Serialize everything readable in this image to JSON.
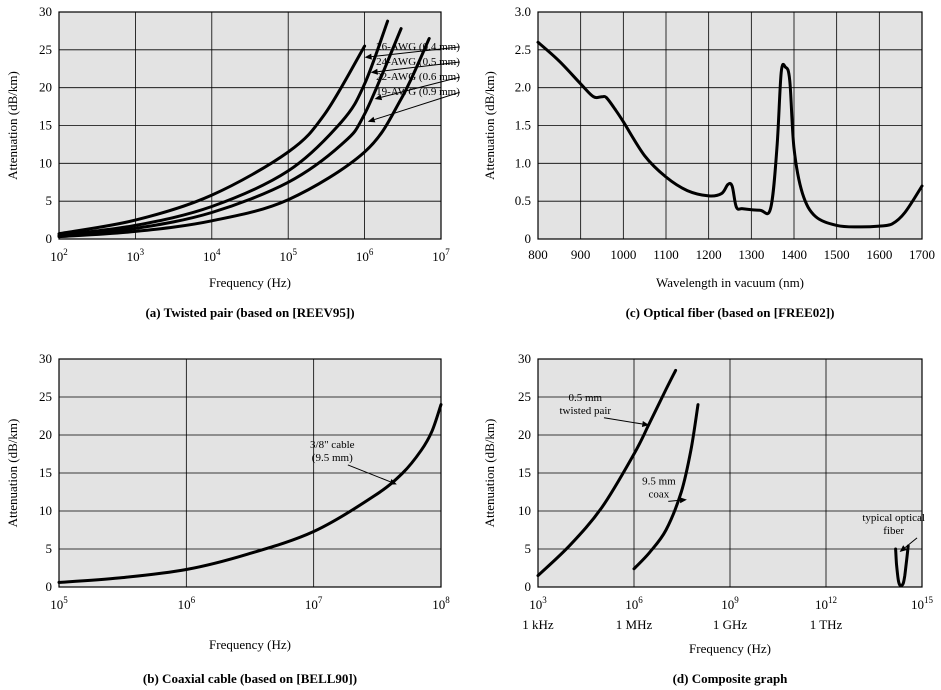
{
  "chart_data": [
    {
      "id": "twisted-pair",
      "type": "line",
      "caption": "(a) Twisted pair (based on [REEV95])",
      "xlabel": "Frequency (Hz)",
      "ylabel": "Attenuation (dB/km)",
      "x_scale": "log",
      "xlim": [
        100,
        10000000
      ],
      "ylim": [
        0,
        30
      ],
      "grid": true,
      "x_ticks": [
        {
          "value": 100,
          "base": "10",
          "exp": "2"
        },
        {
          "value": 1000,
          "base": "10",
          "exp": "3"
        },
        {
          "value": 10000,
          "base": "10",
          "exp": "4"
        },
        {
          "value": 100000,
          "base": "10",
          "exp": "5"
        },
        {
          "value": 1000000,
          "base": "10",
          "exp": "6"
        },
        {
          "value": 10000000,
          "base": "10",
          "exp": "7"
        }
      ],
      "y_ticks": [
        {
          "value": 0,
          "label": "0"
        },
        {
          "value": 5,
          "label": "5"
        },
        {
          "value": 10,
          "label": "10"
        },
        {
          "value": 15,
          "label": "15"
        },
        {
          "value": 20,
          "label": "20"
        },
        {
          "value": 25,
          "label": "25"
        },
        {
          "value": 30,
          "label": "30"
        }
      ],
      "series": [
        {
          "name": "26-AWG (0.4 mm)",
          "x": [
            100,
            1000,
            10000,
            100000,
            300000,
            1000000
          ],
          "y": [
            0.7,
            2.5,
            5.8,
            11.5,
            16.5,
            25.5
          ]
        },
        {
          "name": "24-AWG (0.5 mm)",
          "x": [
            100,
            1000,
            10000,
            100000,
            500000,
            1000000,
            2000000
          ],
          "y": [
            0.5,
            1.8,
            4.3,
            9.0,
            15.5,
            20.5,
            28.8
          ]
        },
        {
          "name": "22-AWG (0.6 mm)",
          "x": [
            100,
            1000,
            10000,
            100000,
            500000,
            1000000,
            3000000
          ],
          "y": [
            0.4,
            1.4,
            3.5,
            7.5,
            12.5,
            16.5,
            27.8
          ]
        },
        {
          "name": "19-AWG (0.9 mm)",
          "x": [
            100,
            1000,
            10000,
            100000,
            1000000,
            3000000,
            7000000
          ],
          "y": [
            0.3,
            1.0,
            2.4,
            5.2,
            11.5,
            18.5,
            26.5
          ]
        }
      ],
      "annotations": [
        {
          "text": "26-AWG (0.4 mm)",
          "tx": 5000000,
          "ty": 25,
          "ax": 1000000,
          "ay": 24
        },
        {
          "text": "24-AWG (0.5 mm)",
          "tx": 5000000,
          "ty": 23,
          "ax": 1200000,
          "ay": 22
        },
        {
          "text": "22-AWG (0.6 mm)",
          "tx": 5000000,
          "ty": 21,
          "ax": 1350000,
          "ay": 18.5
        },
        {
          "text": "19-AWG (0.9 mm)",
          "tx": 5000000,
          "ty": 19,
          "ax": 1100000,
          "ay": 15.5
        }
      ]
    },
    {
      "id": "optical-fiber",
      "type": "line",
      "caption": "(c) Optical fiber (based on [FREE02])",
      "xlabel": "Wavelength in vacuum (nm)",
      "ylabel": "Attenuation (dB/km)",
      "x_scale": "linear",
      "xlim": [
        800,
        1700
      ],
      "ylim": [
        0,
        3
      ],
      "grid": true,
      "x_ticks": [
        {
          "value": 800,
          "label": "800"
        },
        {
          "value": 900,
          "label": "900"
        },
        {
          "value": 1000,
          "label": "1000"
        },
        {
          "value": 1100,
          "label": "1100"
        },
        {
          "value": 1200,
          "label": "1200"
        },
        {
          "value": 1300,
          "label": "1300"
        },
        {
          "value": 1400,
          "label": "1400"
        },
        {
          "value": 1500,
          "label": "1500"
        },
        {
          "value": 1600,
          "label": "1600"
        },
        {
          "value": 1700,
          "label": "1700"
        }
      ],
      "y_ticks": [
        {
          "value": 0,
          "label": "0"
        },
        {
          "value": 0.5,
          "label": "0.5"
        },
        {
          "value": 1,
          "label": "1.0"
        },
        {
          "value": 1.5,
          "label": "1.5"
        },
        {
          "value": 2,
          "label": "2.0"
        },
        {
          "value": 2.5,
          "label": "2.5"
        },
        {
          "value": 3,
          "label": "3.0"
        }
      ],
      "series": [
        {
          "name": "",
          "x": [
            800,
            850,
            900,
            930,
            950,
            960,
            980,
            1000,
            1050,
            1100,
            1150,
            1200,
            1230,
            1245,
            1255,
            1265,
            1280,
            1320,
            1345,
            1360,
            1370,
            1380,
            1390,
            1400,
            1420,
            1450,
            1500,
            1550,
            1600,
            1630,
            1660,
            1700
          ],
          "y": [
            2.6,
            2.35,
            2.05,
            1.88,
            1.88,
            1.87,
            1.72,
            1.55,
            1.1,
            0.82,
            0.64,
            0.57,
            0.6,
            0.72,
            0.7,
            0.42,
            0.4,
            0.38,
            0.4,
            1.2,
            2.2,
            2.27,
            2.1,
            1.2,
            0.6,
            0.3,
            0.18,
            0.16,
            0.17,
            0.2,
            0.35,
            0.7
          ]
        }
      ]
    },
    {
      "id": "coaxial-cable",
      "type": "line",
      "caption": "(b) Coaxial cable (based on [BELL90])",
      "xlabel": "Frequency (Hz)",
      "ylabel": "Attenuation (dB/km)",
      "x_scale": "log",
      "xlim": [
        100000,
        100000000
      ],
      "ylim": [
        0,
        30
      ],
      "grid": true,
      "x_ticks": [
        {
          "value": 100000,
          "base": "10",
          "exp": "5"
        },
        {
          "value": 1000000,
          "base": "10",
          "exp": "6"
        },
        {
          "value": 10000000,
          "base": "10",
          "exp": "7"
        },
        {
          "value": 100000000,
          "base": "10",
          "exp": "8"
        }
      ],
      "y_ticks": [
        {
          "value": 0,
          "label": "0"
        },
        {
          "value": 5,
          "label": "5"
        },
        {
          "value": 10,
          "label": "10"
        },
        {
          "value": 15,
          "label": "15"
        },
        {
          "value": 20,
          "label": "20"
        },
        {
          "value": 25,
          "label": "25"
        },
        {
          "value": 30,
          "label": "30"
        }
      ],
      "series": [
        {
          "name": "3/8\" cable (9.5 mm)",
          "x": [
            100000,
            300000,
            1000000,
            3000000,
            10000000,
            30000000,
            50000000,
            70000000,
            85000000,
            100000000
          ],
          "y": [
            0.6,
            1.2,
            2.3,
            4.3,
            7.3,
            12.0,
            15.0,
            18.0,
            20.5,
            24.0
          ]
        }
      ],
      "annotations": [
        {
          "text": "3/8\" cable",
          "text2": "(9.5 mm)",
          "tx": 14000000,
          "ty": 18.3,
          "ax": 45000000,
          "ay": 13.5
        }
      ]
    },
    {
      "id": "composite",
      "type": "line",
      "caption": "(d) Composite graph",
      "xlabel": "Frequency (Hz)",
      "ylabel": "Attenuation (dB/km)",
      "x_scale": "log",
      "xlim": [
        1000,
        1000000000000000
      ],
      "ylim": [
        0,
        30
      ],
      "grid": true,
      "x_ticks": [
        {
          "value": 1000,
          "base": "10",
          "exp": "3",
          "sub": "1 kHz"
        },
        {
          "value": 1000000,
          "base": "10",
          "exp": "6",
          "sub": "1 MHz"
        },
        {
          "value": 1000000000,
          "base": "10",
          "exp": "9",
          "sub": "1 GHz"
        },
        {
          "value": 1000000000000,
          "base": "10",
          "exp": "12",
          "sub": "1 THz"
        },
        {
          "value": 1000000000000000,
          "base": "10",
          "exp": "15"
        }
      ],
      "y_ticks": [
        {
          "value": 0,
          "label": "0"
        },
        {
          "value": 5,
          "label": "5"
        },
        {
          "value": 10,
          "label": "10"
        },
        {
          "value": 15,
          "label": "15"
        },
        {
          "value": 20,
          "label": "20"
        },
        {
          "value": 25,
          "label": "25"
        },
        {
          "value": 30,
          "label": "30"
        }
      ],
      "series": [
        {
          "name": "0.5 mm twisted pair",
          "x": [
            1000,
            10000,
            100000,
            1000000,
            3000000,
            10000000,
            20000000
          ],
          "y": [
            1.5,
            5.5,
            10.5,
            17.5,
            21.5,
            26.0,
            28.5
          ]
        },
        {
          "name": "9.5 mm coax",
          "x": [
            1000000,
            3000000,
            10000000,
            30000000,
            60000000,
            100000000
          ],
          "y": [
            2.4,
            4.5,
            7.5,
            12.5,
            18.0,
            24.0
          ]
        },
        {
          "name": "typical optical fiber",
          "x": [
            150000000000000,
            160000000000000,
            180000000000000,
            200000000000000,
            230000000000000,
            260000000000000,
            290000000000000,
            330000000000000,
            370000000000000
          ],
          "y": [
            5.0,
            3.0,
            1.0,
            0.3,
            0.2,
            0.5,
            1.5,
            3.5,
            5.4
          ]
        }
      ],
      "annotations": [
        {
          "text": "0.5 mm",
          "text2": "twisted pair",
          "tx": 30000,
          "ty": 24.5,
          "ax": 3000000,
          "ay": 21.3
        },
        {
          "text": "9.5 mm",
          "text2": "coax",
          "tx": 6000000,
          "ty": 13.5,
          "ax": 45000000,
          "ay": 11.5
        },
        {
          "text": "typical optical",
          "text2": "fiber",
          "tx": 130000000000000,
          "ty": 8.7,
          "ax": 200000000000000,
          "ay": 4.6
        }
      ]
    }
  ]
}
